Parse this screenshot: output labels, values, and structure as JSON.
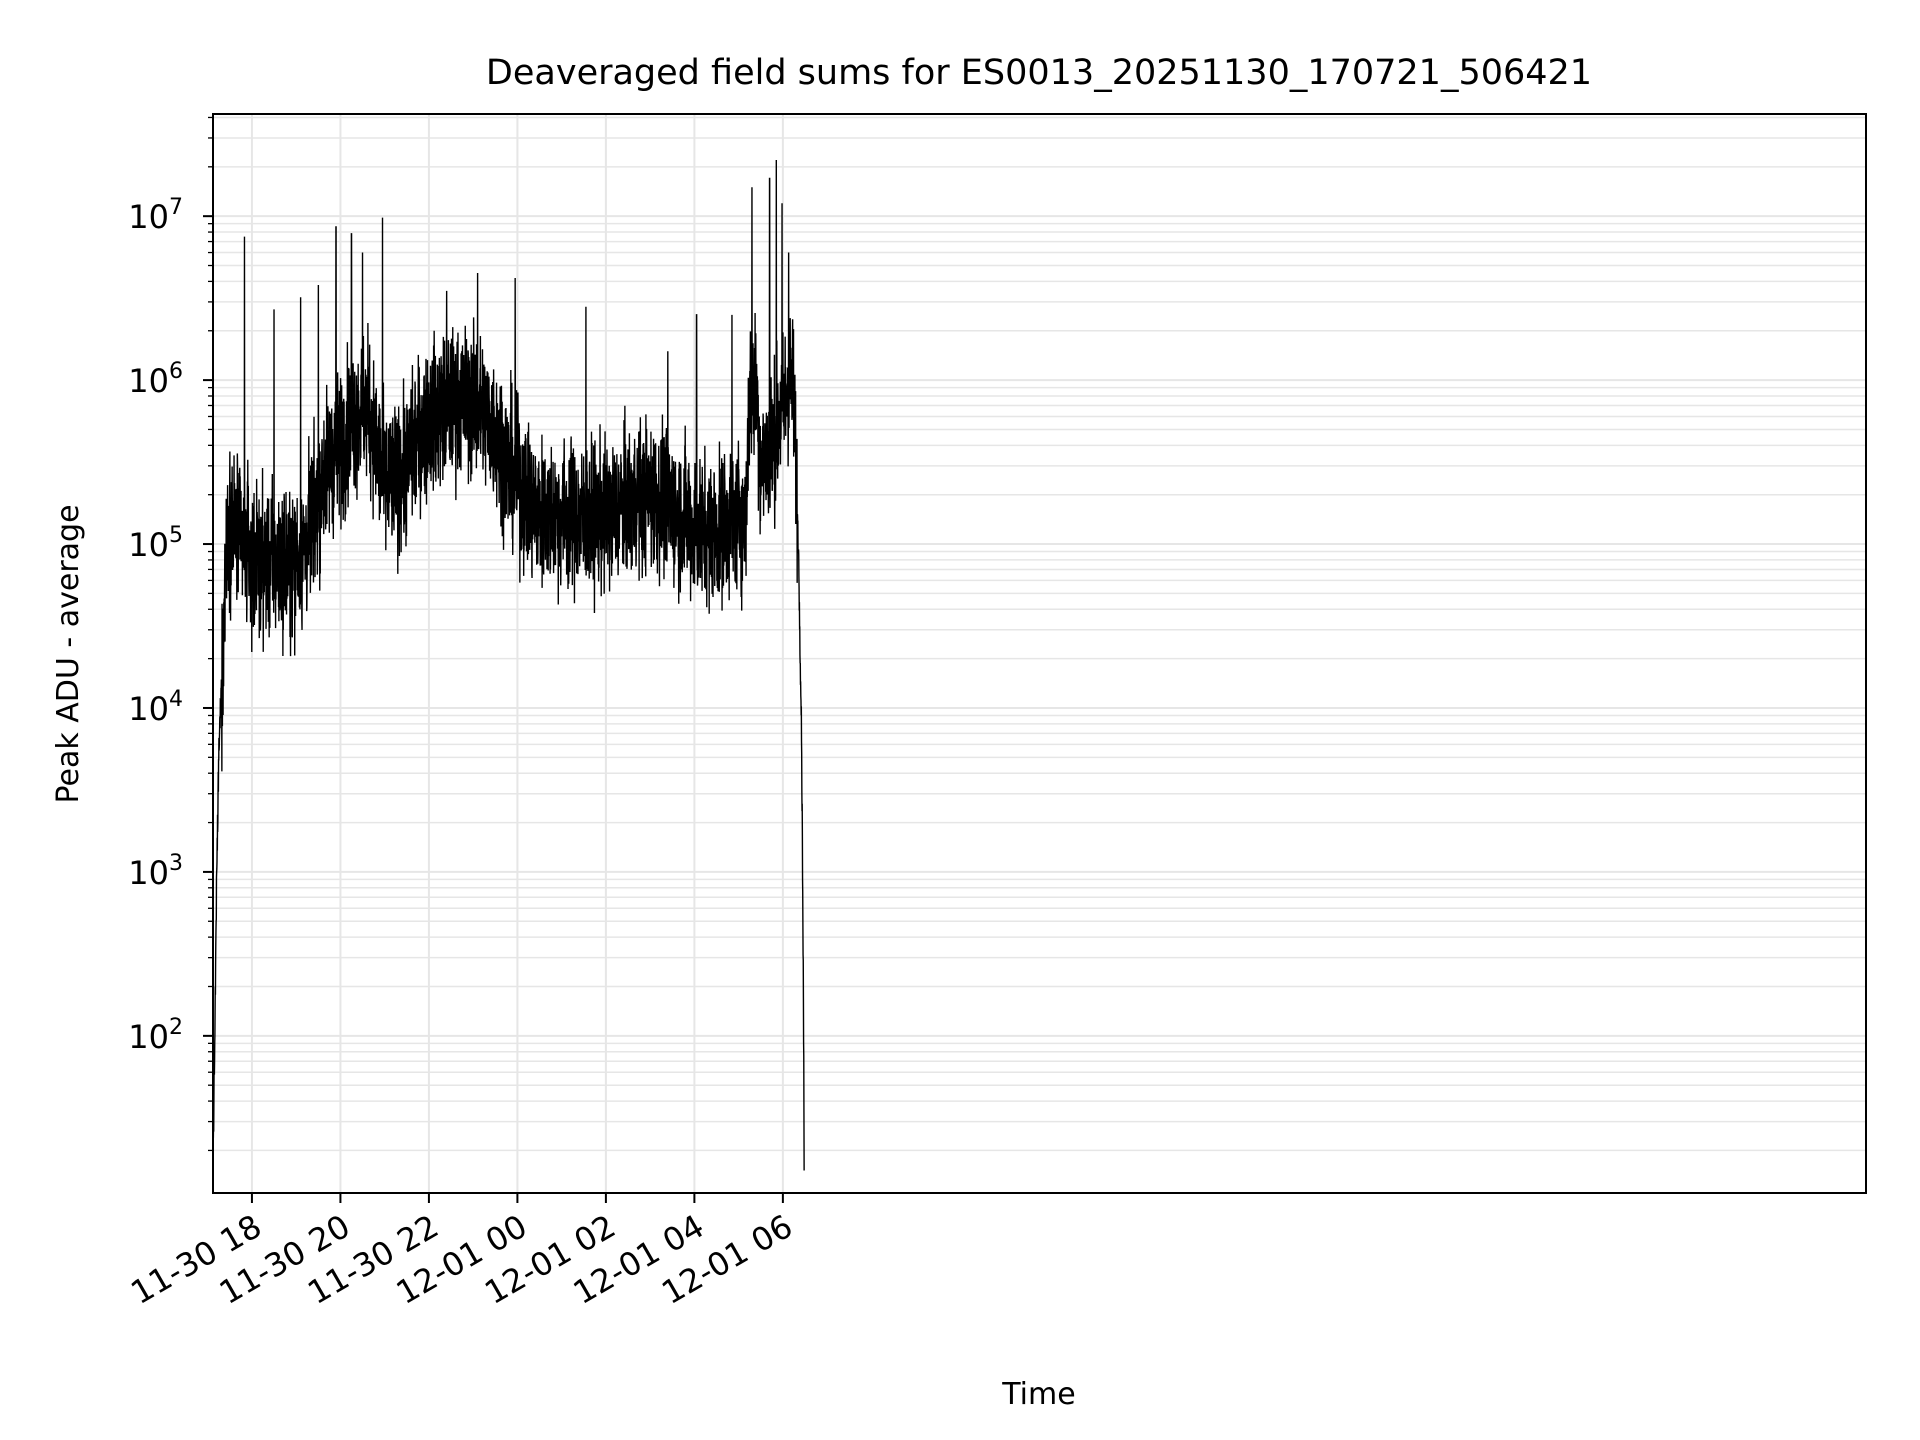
{
  "chart_data": {
    "type": "line",
    "title": "Deaveraged field sums for ES0013_20251130_170721_506421",
    "xlabel": "Time",
    "ylabel": "Peak ADU - average",
    "yscale": "log",
    "ylim": [
      11,
      42000000.0
    ],
    "xlim_hours": [
      -6.88,
      30.48
    ],
    "grid": true,
    "line_color": "#000000",
    "grid_color": "#e6e6e6",
    "x_ticks": [
      {
        "hours": -6,
        "label": "11-30 18"
      },
      {
        "hours": -4,
        "label": "11-30 20"
      },
      {
        "hours": -2,
        "label": "11-30 22"
      },
      {
        "hours": 0,
        "label": "12-01 00"
      },
      {
        "hours": 2,
        "label": "12-01 02"
      },
      {
        "hours": 4,
        "label": "12-01 04"
      },
      {
        "hours": 6,
        "label": "12-01 06"
      }
    ],
    "y_ticks": [
      {
        "exp": 2,
        "base": "10",
        "sup": "2"
      },
      {
        "exp": 3,
        "base": "10",
        "sup": "3"
      },
      {
        "exp": 4,
        "base": "10",
        "sup": "4"
      },
      {
        "exp": 5,
        "base": "10",
        "sup": "5"
      },
      {
        "exp": 6,
        "base": "10",
        "sup": "6"
      },
      {
        "exp": 7,
        "base": "10",
        "sup": "7"
      }
    ],
    "series": [
      {
        "name": "field sums",
        "envelope": [
          [
            -6.88,
            20
          ],
          [
            -6.85,
            55
          ],
          [
            -6.8,
            800
          ],
          [
            -6.75,
            5000
          ],
          [
            -6.7,
            12000
          ],
          [
            -6.65,
            20000
          ],
          [
            -6.6,
            90000
          ],
          [
            -6.5,
            150000
          ],
          [
            -6.4,
            130000
          ],
          [
            -6.2,
            100000
          ],
          [
            -6.0,
            80000
          ],
          [
            -5.7,
            75000
          ],
          [
            -5.4,
            80000
          ],
          [
            -5.1,
            75000
          ],
          [
            -4.8,
            90000
          ],
          [
            -4.5,
            200000
          ],
          [
            -4.3,
            300000
          ],
          [
            -4.0,
            400000
          ],
          [
            -3.7,
            600000
          ],
          [
            -3.4,
            700000
          ],
          [
            -3.2,
            400000
          ],
          [
            -3.0,
            220000
          ],
          [
            -2.7,
            250000
          ],
          [
            -2.5,
            300000
          ],
          [
            -2.2,
            500000
          ],
          [
            -1.9,
            600000
          ],
          [
            -1.5,
            700000
          ],
          [
            -1.0,
            750000
          ],
          [
            -0.5,
            500000
          ],
          [
            -0.2,
            300000
          ],
          [
            0.4,
            160000
          ],
          [
            1.0,
            150000
          ],
          [
            1.5,
            140000
          ],
          [
            2.0,
            150000
          ],
          [
            2.5,
            180000
          ],
          [
            3.0,
            200000
          ],
          [
            3.5,
            170000
          ],
          [
            4.0,
            130000
          ],
          [
            4.5,
            120000
          ],
          [
            5.0,
            150000
          ],
          [
            5.15,
            130000
          ],
          [
            5.25,
            800000
          ],
          [
            5.4,
            900000
          ],
          [
            5.5,
            300000
          ],
          [
            5.75,
            400000
          ],
          [
            5.95,
            600000
          ],
          [
            6.15,
            1000000
          ],
          [
            6.25,
            800000
          ],
          [
            6.35,
            100000
          ],
          [
            6.42,
            8000
          ],
          [
            6.46,
            300
          ],
          [
            6.48,
            20
          ]
        ],
        "noise_sigma_decades": 0.32,
        "spikes": [
          [
            -6.17,
            7500000.0
          ],
          [
            -5.5,
            2700000.0
          ],
          [
            -4.9,
            3200000.0
          ],
          [
            -4.5,
            3800000.0
          ],
          [
            -4.1,
            8600000.0
          ],
          [
            -3.75,
            7800000.0
          ],
          [
            -3.5,
            6000000.0
          ],
          [
            -3.05,
            9800000.0
          ],
          [
            -1.6,
            3500000.0
          ],
          [
            -0.9,
            4500000.0
          ],
          [
            -0.05,
            4200000.0
          ],
          [
            1.55,
            2800000.0
          ],
          [
            3.4,
            1500000.0
          ],
          [
            4.05,
            2500000.0
          ],
          [
            4.85,
            2500000.0
          ],
          [
            5.3,
            15000000.0
          ],
          [
            5.85,
            22000000.0
          ],
          [
            5.7,
            17000000.0
          ],
          [
            5.98,
            12000000.0
          ],
          [
            6.13,
            6000000.0
          ]
        ]
      }
    ]
  }
}
